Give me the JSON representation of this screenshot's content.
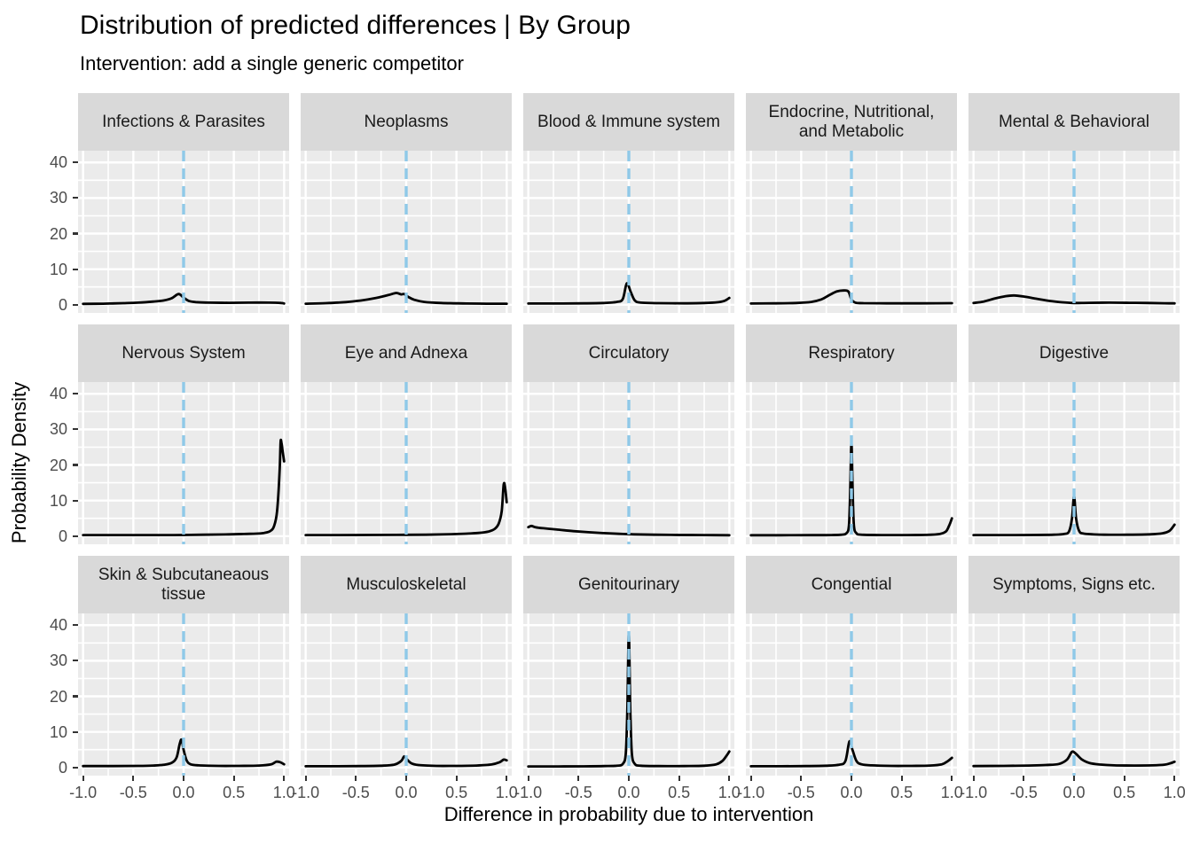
{
  "title": "Distribution of predicted differences | By Group",
  "subtitle": "Intervention: add a single generic competitor",
  "colors": {
    "panel_bg": "#EBEBEB",
    "strip_bg": "#D9D9D9",
    "grid": "#FFFFFF",
    "vline": "#8FC9E8",
    "curve": "#000000",
    "axis_text": "#4D4D4D",
    "tick_mark": "#333333"
  },
  "chart_data": {
    "type": "line",
    "subtype": "faceted-density",
    "title": "Distribution of predicted differences | By Group",
    "subtitle": "Intervention: add a single generic competitor",
    "xlabel": "Difference in probability due to intervention",
    "ylabel": "Probability Density",
    "layout": {
      "rows": 3,
      "cols": 5,
      "grid": true,
      "legend": "none"
    },
    "x_range": [
      -1.05,
      1.05
    ],
    "y_range": [
      -2.3,
      43.3
    ],
    "x_ticks": [
      -1.0,
      -0.5,
      0.0,
      0.5,
      1.0
    ],
    "x_tick_labels": [
      "-1.0",
      "-0.5",
      "0.0",
      "0.5",
      "1.0"
    ],
    "y_ticks": [
      0,
      10,
      20,
      30,
      40
    ],
    "y_tick_labels": [
      "0",
      "10",
      "20",
      "30",
      "40"
    ],
    "x_minor_ticks": [
      -0.75,
      -0.25,
      0.25,
      0.75
    ],
    "y_minor_ticks": [
      5,
      15,
      25,
      35
    ],
    "vline_x": 0,
    "vline_style": "dashed",
    "facets": [
      {
        "label": "Infections & Parasites",
        "points": [
          [
            -1,
            0.25
          ],
          [
            -0.8,
            0.3
          ],
          [
            -0.6,
            0.45
          ],
          [
            -0.45,
            0.6
          ],
          [
            -0.3,
            0.9
          ],
          [
            -0.2,
            1.2
          ],
          [
            -0.12,
            1.8
          ],
          [
            -0.05,
            3.0
          ],
          [
            0,
            2.0
          ],
          [
            0.05,
            1.1
          ],
          [
            0.12,
            0.75
          ],
          [
            0.25,
            0.6
          ],
          [
            0.45,
            0.55
          ],
          [
            0.65,
            0.6
          ],
          [
            0.85,
            0.6
          ],
          [
            0.97,
            0.5
          ],
          [
            1,
            0.35
          ]
        ]
      },
      {
        "label": "Neoplasms",
        "points": [
          [
            -1,
            0.3
          ],
          [
            -0.8,
            0.45
          ],
          [
            -0.6,
            0.75
          ],
          [
            -0.45,
            1.2
          ],
          [
            -0.3,
            1.9
          ],
          [
            -0.18,
            2.7
          ],
          [
            -0.1,
            3.3
          ],
          [
            -0.05,
            2.9
          ],
          [
            -0.02,
            3.0
          ],
          [
            0.02,
            2.2
          ],
          [
            0.08,
            1.4
          ],
          [
            0.18,
            0.8
          ],
          [
            0.35,
            0.5
          ],
          [
            0.6,
            0.35
          ],
          [
            0.8,
            0.3
          ],
          [
            1,
            0.28
          ]
        ]
      },
      {
        "label": "Blood & Immune system",
        "points": [
          [
            -1,
            0.35
          ],
          [
            -0.7,
            0.35
          ],
          [
            -0.45,
            0.4
          ],
          [
            -0.25,
            0.5
          ],
          [
            -0.12,
            0.8
          ],
          [
            -0.06,
            1.6
          ],
          [
            -0.02,
            6.0
          ],
          [
            0.02,
            3.5
          ],
          [
            0.06,
            1.2
          ],
          [
            0.12,
            0.6
          ],
          [
            0.3,
            0.45
          ],
          [
            0.55,
            0.4
          ],
          [
            0.75,
            0.5
          ],
          [
            0.88,
            0.7
          ],
          [
            0.95,
            1.1
          ],
          [
            1,
            1.9
          ]
        ]
      },
      {
        "label": "Endocrine, Nutritional,\nand Metabolic",
        "points": [
          [
            -1,
            0.35
          ],
          [
            -0.75,
            0.38
          ],
          [
            -0.55,
            0.5
          ],
          [
            -0.4,
            0.8
          ],
          [
            -0.3,
            1.5
          ],
          [
            -0.22,
            2.7
          ],
          [
            -0.15,
            3.7
          ],
          [
            -0.08,
            4.0
          ],
          [
            -0.03,
            3.7
          ],
          [
            0,
            1.5
          ],
          [
            0.04,
            0.6
          ],
          [
            0.12,
            0.45
          ],
          [
            0.35,
            0.4
          ],
          [
            0.6,
            0.4
          ],
          [
            0.85,
            0.42
          ],
          [
            1,
            0.45
          ]
        ]
      },
      {
        "label": "Mental & Behavioral",
        "points": [
          [
            -1,
            0.5
          ],
          [
            -0.9,
            0.9
          ],
          [
            -0.78,
            1.8
          ],
          [
            -0.68,
            2.4
          ],
          [
            -0.6,
            2.6
          ],
          [
            -0.5,
            2.3
          ],
          [
            -0.38,
            1.7
          ],
          [
            -0.25,
            1.1
          ],
          [
            -0.12,
            0.7
          ],
          [
            0,
            0.5
          ],
          [
            0.15,
            0.55
          ],
          [
            0.35,
            0.6
          ],
          [
            0.55,
            0.55
          ],
          [
            0.75,
            0.48
          ],
          [
            0.9,
            0.42
          ],
          [
            1,
            0.38
          ]
        ]
      },
      {
        "label": "Nervous System",
        "points": [
          [
            -1,
            0.3
          ],
          [
            -0.7,
            0.28
          ],
          [
            -0.4,
            0.28
          ],
          [
            -0.1,
            0.3
          ],
          [
            0.2,
            0.38
          ],
          [
            0.45,
            0.5
          ],
          [
            0.6,
            0.6
          ],
          [
            0.72,
            0.7
          ],
          [
            0.8,
            0.9
          ],
          [
            0.86,
            1.4
          ],
          [
            0.9,
            2.8
          ],
          [
            0.93,
            7
          ],
          [
            0.955,
            18
          ],
          [
            0.965,
            26.5
          ],
          [
            0.975,
            26
          ],
          [
            0.985,
            24
          ],
          [
            1,
            21
          ]
        ]
      },
      {
        "label": "Eye and Adnexa",
        "points": [
          [
            -1,
            0.3
          ],
          [
            -0.7,
            0.3
          ],
          [
            -0.4,
            0.32
          ],
          [
            -0.1,
            0.35
          ],
          [
            0.2,
            0.4
          ],
          [
            0.45,
            0.55
          ],
          [
            0.6,
            0.7
          ],
          [
            0.72,
            0.9
          ],
          [
            0.82,
            1.3
          ],
          [
            0.88,
            2.0
          ],
          [
            0.92,
            3.5
          ],
          [
            0.95,
            7
          ],
          [
            0.97,
            14.5
          ],
          [
            0.985,
            13.5
          ],
          [
            1,
            9.5
          ]
        ]
      },
      {
        "label": "Circulatory",
        "points": [
          [
            -1,
            2.5
          ],
          [
            -0.97,
            2.85
          ],
          [
            -0.93,
            2.5
          ],
          [
            -0.85,
            2.2
          ],
          [
            -0.7,
            1.8
          ],
          [
            -0.55,
            1.4
          ],
          [
            -0.4,
            1.1
          ],
          [
            -0.25,
            0.85
          ],
          [
            -0.1,
            0.65
          ],
          [
            0.05,
            0.5
          ],
          [
            0.25,
            0.4
          ],
          [
            0.5,
            0.32
          ],
          [
            0.75,
            0.28
          ],
          [
            1,
            0.25
          ]
        ]
      },
      {
        "label": "Respiratory",
        "points": [
          [
            -1,
            0.25
          ],
          [
            -0.7,
            0.25
          ],
          [
            -0.4,
            0.27
          ],
          [
            -0.2,
            0.3
          ],
          [
            -0.1,
            0.4
          ],
          [
            -0.05,
            0.8
          ],
          [
            -0.025,
            3
          ],
          [
            -0.012,
            13
          ],
          [
            0,
            26
          ],
          [
            0.012,
            13
          ],
          [
            0.025,
            3
          ],
          [
            0.05,
            0.8
          ],
          [
            0.1,
            0.4
          ],
          [
            0.3,
            0.3
          ],
          [
            0.55,
            0.3
          ],
          [
            0.75,
            0.35
          ],
          [
            0.88,
            0.6
          ],
          [
            0.94,
            1.3
          ],
          [
            0.97,
            2.8
          ],
          [
            1,
            5
          ]
        ]
      },
      {
        "label": "Digestive",
        "points": [
          [
            -1,
            0.3
          ],
          [
            -0.7,
            0.3
          ],
          [
            -0.4,
            0.32
          ],
          [
            -0.2,
            0.4
          ],
          [
            -0.1,
            0.6
          ],
          [
            -0.05,
            1.3
          ],
          [
            -0.02,
            5
          ],
          [
            0,
            11.2
          ],
          [
            0.02,
            5
          ],
          [
            0.05,
            1.5
          ],
          [
            0.1,
            0.7
          ],
          [
            0.3,
            0.4
          ],
          [
            0.55,
            0.4
          ],
          [
            0.75,
            0.5
          ],
          [
            0.88,
            0.8
          ],
          [
            0.95,
            1.5
          ],
          [
            1,
            3.2
          ]
        ]
      },
      {
        "label": "Skin & Subcutaneaous\ntissue",
        "points": [
          [
            -1,
            0.4
          ],
          [
            -0.7,
            0.4
          ],
          [
            -0.45,
            0.45
          ],
          [
            -0.3,
            0.55
          ],
          [
            -0.2,
            0.75
          ],
          [
            -0.12,
            1.3
          ],
          [
            -0.07,
            2.8
          ],
          [
            -0.04,
            6.5
          ],
          [
            -0.02,
            7.8
          ],
          [
            0,
            5
          ],
          [
            0.03,
            2
          ],
          [
            0.07,
            0.9
          ],
          [
            0.15,
            0.6
          ],
          [
            0.35,
            0.45
          ],
          [
            0.55,
            0.45
          ],
          [
            0.75,
            0.55
          ],
          [
            0.87,
            0.9
          ],
          [
            0.92,
            1.6
          ],
          [
            0.96,
            1.5
          ],
          [
            1,
            0.9
          ]
        ]
      },
      {
        "label": "Musculoskeletal",
        "points": [
          [
            -1,
            0.35
          ],
          [
            -0.7,
            0.35
          ],
          [
            -0.45,
            0.4
          ],
          [
            -0.25,
            0.5
          ],
          [
            -0.12,
            0.8
          ],
          [
            -0.05,
            1.8
          ],
          [
            -0.02,
            3.1
          ],
          [
            0.01,
            2.2
          ],
          [
            0.05,
            1.2
          ],
          [
            0.12,
            0.7
          ],
          [
            0.3,
            0.45
          ],
          [
            0.5,
            0.45
          ],
          [
            0.7,
            0.55
          ],
          [
            0.85,
            0.85
          ],
          [
            0.93,
            1.5
          ],
          [
            0.97,
            2.2
          ],
          [
            1,
            2.0
          ]
        ]
      },
      {
        "label": "Genitourinary",
        "points": [
          [
            -1,
            0.3
          ],
          [
            -0.7,
            0.3
          ],
          [
            -0.45,
            0.32
          ],
          [
            -0.25,
            0.38
          ],
          [
            -0.12,
            0.5
          ],
          [
            -0.06,
            1
          ],
          [
            -0.03,
            4
          ],
          [
            -0.015,
            16
          ],
          [
            0,
            37.5
          ],
          [
            0.015,
            16
          ],
          [
            0.03,
            4
          ],
          [
            0.06,
            1
          ],
          [
            0.12,
            0.5
          ],
          [
            0.3,
            0.38
          ],
          [
            0.55,
            0.4
          ],
          [
            0.75,
            0.5
          ],
          [
            0.87,
            0.9
          ],
          [
            0.93,
            1.8
          ],
          [
            0.97,
            3.2
          ],
          [
            1,
            4.5
          ]
        ]
      },
      {
        "label": "Congential",
        "points": [
          [
            -1,
            0.35
          ],
          [
            -0.7,
            0.35
          ],
          [
            -0.45,
            0.4
          ],
          [
            -0.25,
            0.5
          ],
          [
            -0.12,
            0.8
          ],
          [
            -0.06,
            1.8
          ],
          [
            -0.02,
            7.3
          ],
          [
            0.01,
            5
          ],
          [
            0.05,
            1.8
          ],
          [
            0.1,
            0.9
          ],
          [
            0.2,
            0.6
          ],
          [
            0.4,
            0.45
          ],
          [
            0.6,
            0.45
          ],
          [
            0.78,
            0.55
          ],
          [
            0.9,
            0.9
          ],
          [
            0.96,
            1.8
          ],
          [
            1,
            2.7
          ]
        ]
      },
      {
        "label": "Symptoms, Signs etc.",
        "points": [
          [
            -1,
            0.4
          ],
          [
            -0.7,
            0.45
          ],
          [
            -0.45,
            0.55
          ],
          [
            -0.28,
            0.7
          ],
          [
            -0.15,
            1.0
          ],
          [
            -0.07,
            2.2
          ],
          [
            -0.02,
            4.4
          ],
          [
            0.02,
            3.8
          ],
          [
            0.08,
            2.2
          ],
          [
            0.15,
            1.3
          ],
          [
            0.25,
            0.85
          ],
          [
            0.4,
            0.6
          ],
          [
            0.6,
            0.55
          ],
          [
            0.78,
            0.6
          ],
          [
            0.9,
            0.8
          ],
          [
            0.96,
            1.2
          ],
          [
            1,
            1.6
          ]
        ]
      }
    ]
  }
}
